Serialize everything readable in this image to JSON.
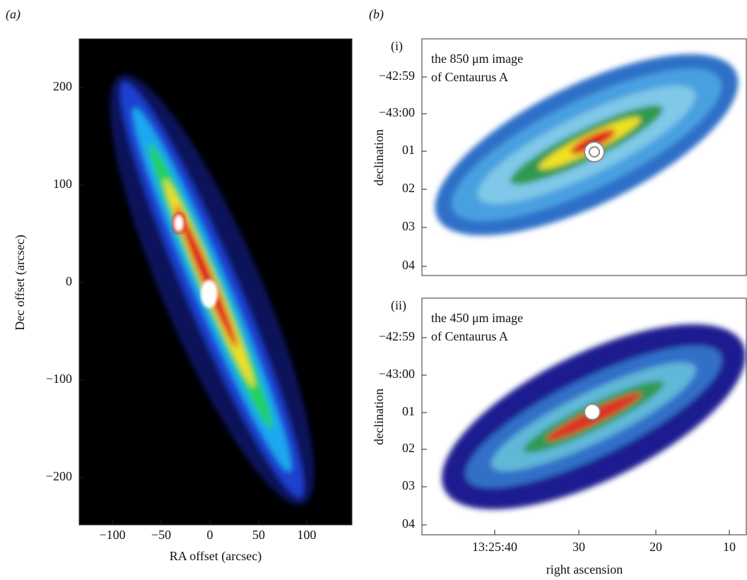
{
  "panel_a": {
    "label": "(a)",
    "x_label": "RA offset (arcsec)",
    "y_label": "Dec offset (arcsec)",
    "xticks": [
      "−100",
      "−50",
      "0",
      "50",
      "100"
    ],
    "yticks": [
      "200",
      "100",
      "0",
      "−100",
      "−200"
    ]
  },
  "panel_b": {
    "label": "(b)",
    "x_label": "right ascension",
    "xticks": [
      "13:25:40",
      "30",
      "20",
      "10"
    ],
    "subpanels": [
      {
        "label": "(i)",
        "caption_lines": [
          "the 850 μm image",
          "of Centaurus A"
        ],
        "y_label": "declination",
        "yticks": [
          "−42:59",
          "−43:00",
          "01",
          "02",
          "03",
          "04"
        ]
      },
      {
        "label": "(ii)",
        "caption_lines": [
          "the 450 μm image",
          "of Centaurus A"
        ],
        "y_label": "declination",
        "yticks": [
          "−42:59",
          "−43:00",
          "01",
          "02",
          "03",
          "04"
        ]
      }
    ]
  }
}
